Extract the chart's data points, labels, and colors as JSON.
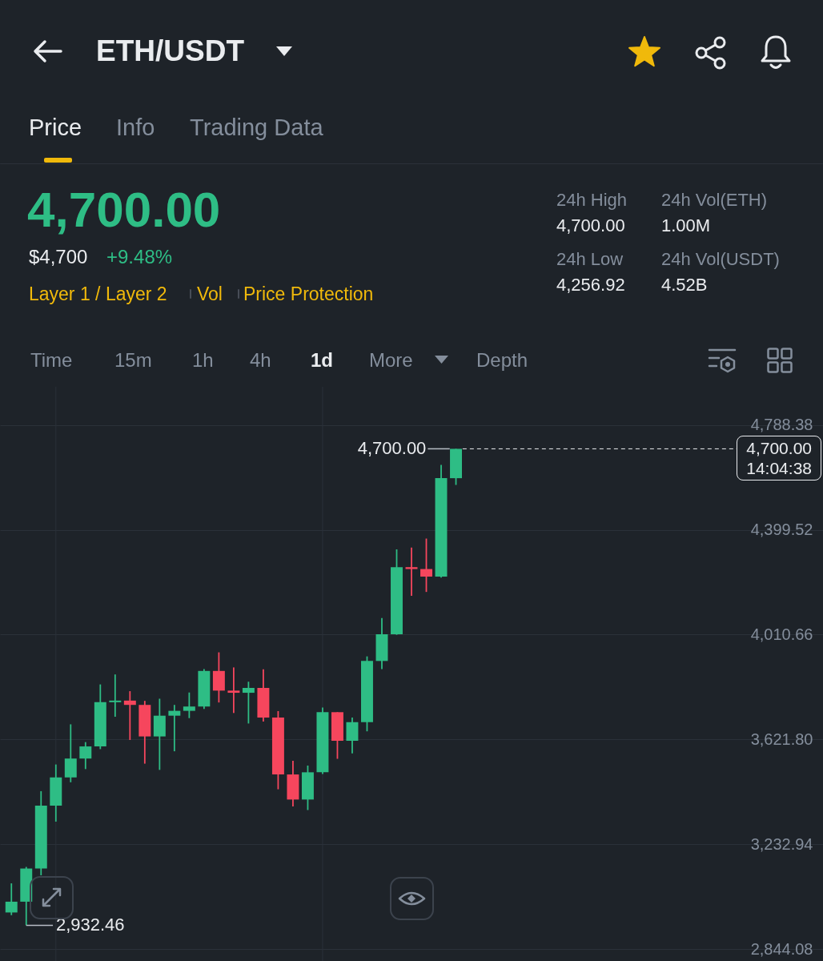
{
  "chart_data": {
    "type": "candlestick",
    "title": "ETH/USDT",
    "categories": [
      null,
      null,
      null,
      null,
      null,
      null,
      null,
      null,
      null,
      null,
      null,
      null,
      null,
      null,
      null,
      null,
      null,
      null,
      null,
      null,
      null,
      null,
      null,
      null,
      null,
      null,
      null,
      null,
      null,
      null,
      null,
      null,
      null,
      null,
      null,
      null,
      null,
      null,
      null,
      null,
      null,
      null,
      null,
      null,
      null,
      null,
      null,
      null,
      null,
      null,
      null,
      null,
      null,
      null,
      null
    ],
    "ohlc": [
      [
        2980,
        3088,
        2970,
        3020
      ],
      [
        3020,
        3149,
        2932.46,
        3143
      ],
      [
        3143,
        3430,
        3118,
        3376
      ],
      [
        3376,
        3529,
        3317,
        3481
      ],
      [
        3481,
        3678,
        3463,
        3551
      ],
      [
        3551,
        3612,
        3512,
        3596
      ],
      [
        3596,
        3826,
        3586,
        3760
      ],
      [
        3760,
        3863,
        3706,
        3766
      ],
      [
        3766,
        3801,
        3620,
        3750
      ],
      [
        3750,
        3765,
        3532,
        3633
      ],
      [
        3633,
        3773,
        3509,
        3710
      ],
      [
        3710,
        3750,
        3578,
        3728
      ],
      [
        3728,
        3796,
        3701,
        3744
      ],
      [
        3744,
        3883,
        3735,
        3876
      ],
      [
        3876,
        3945,
        3759,
        3803
      ],
      [
        3803,
        3889,
        3720,
        3795
      ],
      [
        3795,
        3836,
        3681,
        3813
      ],
      [
        3813,
        3882,
        3688,
        3703
      ],
      [
        3703,
        3727,
        3437,
        3492
      ],
      [
        3492,
        3543,
        3373,
        3399
      ],
      [
        3399,
        3525,
        3360,
        3500
      ],
      [
        3500,
        3740,
        3494,
        3723
      ],
      [
        3723,
        3723,
        3550,
        3617
      ],
      [
        3617,
        3703,
        3570,
        3686
      ],
      [
        3686,
        3930,
        3652,
        3913
      ],
      [
        3913,
        4072,
        3883,
        4012
      ],
      [
        4012,
        4327,
        4010,
        4261
      ],
      [
        4261,
        4334,
        4155,
        4254
      ],
      [
        4254,
        4367,
        4169,
        4226
      ],
      [
        4226,
        4640,
        4222,
        4591
      ],
      [
        4591,
        4700,
        4566,
        4700
      ],
      null,
      null,
      null,
      null,
      null,
      null,
      null,
      null,
      null,
      null,
      null,
      null,
      null,
      null,
      null,
      null,
      null,
      null,
      null,
      null,
      null,
      null,
      null,
      null
    ],
    "colors": [
      "#2ebd85",
      "#2ebd85",
      "#2ebd85",
      "#2ebd85",
      "#2ebd85",
      "#2ebd85",
      "#2ebd85",
      "#2ebd85",
      "#f6465d",
      "#f6465d",
      "#2ebd85",
      "#2ebd85",
      "#2ebd85",
      "#2ebd85",
      "#f6465d",
      "#f6465d",
      "#2ebd85",
      "#f6465d",
      "#f6465d",
      "#f6465d",
      "#2ebd85",
      "#2ebd85",
      "#f6465d",
      "#2ebd85",
      "#2ebd85",
      "#2ebd85",
      "#2ebd85",
      "#f6465d",
      "#f6465d",
      "#2ebd85",
      "#2ebd85",
      null,
      null,
      null,
      null,
      null,
      null,
      null,
      null,
      null,
      null,
      null,
      null,
      null,
      null,
      null,
      null,
      null,
      null,
      null,
      null,
      null,
      null,
      null,
      null
    ],
    "ylim": [
      2800,
      4930
    ],
    "yticks": [
      {
        "value": 4788.38,
        "label": "4,788.38"
      },
      {
        "value": 4399.52,
        "label": "4,399.52"
      },
      {
        "value": 4010.66,
        "label": "4,010.66"
      },
      {
        "value": 3621.8,
        "label": "3,621.80"
      },
      {
        "value": 3232.94,
        "label": "3,232.94"
      },
      {
        "value": 2844.08,
        "label": "2,844.08"
      }
    ],
    "grid": "y",
    "tick_labels": "y",
    "ref_lines": [
      {
        "axis": "y",
        "value": 4700,
        "label": "4,700.00\n14:04:38",
        "color": "#eaecef",
        "line_style": "dashed"
      }
    ],
    "annotations": [
      "Price",
      "Info",
      "Trading Data",
      "4,700.00",
      "$4,700",
      "+9.48%",
      "Layer 1 / Layer 2",
      "Vol",
      "Price Protection",
      "24h High",
      "4,700.00",
      "24h Vol(ETH)",
      "1.00M",
      "24h Low",
      "4,256.92",
      "24h Vol(USDT)",
      "4.52B",
      "Time",
      "15m",
      "1h",
      "4h",
      "1d",
      "More",
      "Depth",
      "4,700.00",
      "2,932.46"
    ]
  }
}
